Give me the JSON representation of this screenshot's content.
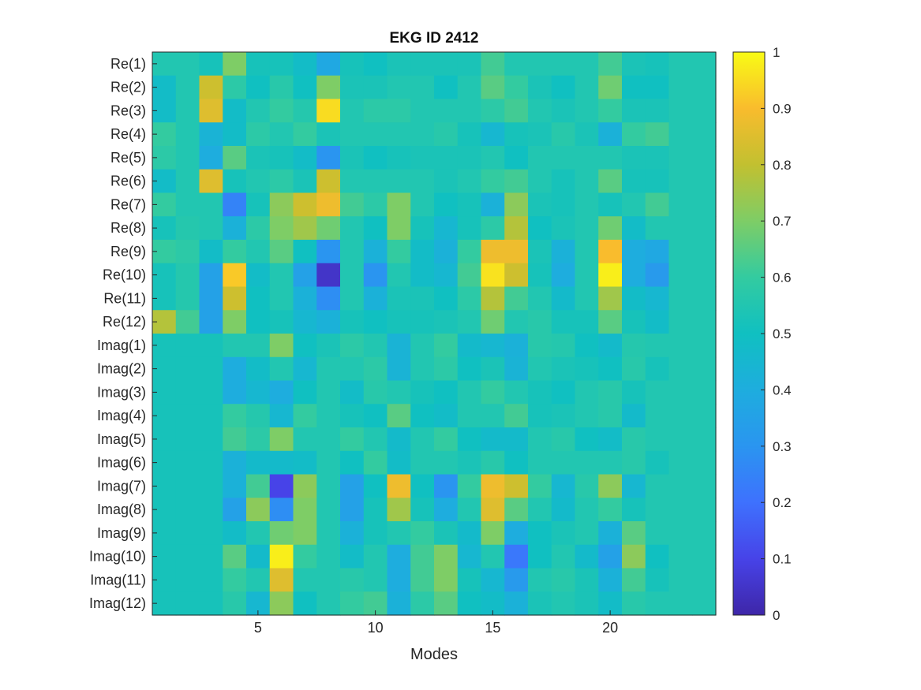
{
  "chart_data": {
    "type": "heatmap",
    "title": "EKG ID 2412",
    "xlabel": "Modes",
    "ylabel": "",
    "x_range": [
      1,
      24
    ],
    "x_ticks": [
      5,
      10,
      15,
      20
    ],
    "y_labels": [
      "Re(1)",
      "Re(2)",
      "Re(3)",
      "Re(4)",
      "Re(5)",
      "Re(6)",
      "Re(7)",
      "Re(8)",
      "Re(9)",
      "Re(10)",
      "Re(11)",
      "Re(12)",
      "Imag(1)",
      "Imag(2)",
      "Imag(3)",
      "Imag(4)",
      "Imag(5)",
      "Imag(6)",
      "Imag(7)",
      "Imag(8)",
      "Imag(9)",
      "Imag(10)",
      "Imag(11)",
      "Imag(12)"
    ],
    "colorbar": {
      "range": [
        0,
        1
      ],
      "ticks": [
        0,
        0.1,
        0.2,
        0.3,
        0.4,
        0.5,
        0.6,
        0.7,
        0.8,
        0.9,
        1
      ],
      "colormap": "parula"
    },
    "values": [
      [
        0.55,
        0.55,
        0.52,
        0.7,
        0.52,
        0.52,
        0.48,
        0.38,
        0.52,
        0.5,
        0.53,
        0.53,
        0.53,
        0.53,
        0.62,
        0.55,
        0.55,
        0.55,
        0.55,
        0.62,
        0.53,
        0.52,
        0.55,
        0.55
      ],
      [
        0.48,
        0.55,
        0.82,
        0.58,
        0.5,
        0.57,
        0.5,
        0.7,
        0.53,
        0.53,
        0.55,
        0.55,
        0.5,
        0.55,
        0.65,
        0.6,
        0.53,
        0.5,
        0.55,
        0.68,
        0.5,
        0.5,
        0.55,
        0.55
      ],
      [
        0.48,
        0.55,
        0.85,
        0.48,
        0.55,
        0.6,
        0.56,
        0.95,
        0.55,
        0.58,
        0.58,
        0.55,
        0.55,
        0.55,
        0.58,
        0.62,
        0.55,
        0.53,
        0.55,
        0.6,
        0.53,
        0.53,
        0.55,
        0.55
      ],
      [
        0.6,
        0.55,
        0.43,
        0.48,
        0.58,
        0.55,
        0.6,
        0.53,
        0.55,
        0.55,
        0.55,
        0.55,
        0.57,
        0.52,
        0.45,
        0.52,
        0.53,
        0.57,
        0.53,
        0.42,
        0.6,
        0.62,
        0.55,
        0.55
      ],
      [
        0.58,
        0.55,
        0.4,
        0.65,
        0.53,
        0.52,
        0.48,
        0.3,
        0.53,
        0.5,
        0.52,
        0.53,
        0.53,
        0.53,
        0.55,
        0.5,
        0.55,
        0.55,
        0.55,
        0.55,
        0.53,
        0.53,
        0.55,
        0.55
      ],
      [
        0.48,
        0.55,
        0.85,
        0.52,
        0.55,
        0.58,
        0.53,
        0.82,
        0.55,
        0.55,
        0.55,
        0.55,
        0.53,
        0.55,
        0.6,
        0.62,
        0.55,
        0.52,
        0.55,
        0.65,
        0.52,
        0.52,
        0.55,
        0.55
      ],
      [
        0.6,
        0.55,
        0.55,
        0.25,
        0.52,
        0.72,
        0.82,
        0.88,
        0.62,
        0.58,
        0.7,
        0.55,
        0.5,
        0.52,
        0.42,
        0.72,
        0.53,
        0.52,
        0.55,
        0.52,
        0.55,
        0.62,
        0.55,
        0.55
      ],
      [
        0.52,
        0.56,
        0.55,
        0.42,
        0.58,
        0.7,
        0.75,
        0.68,
        0.55,
        0.5,
        0.7,
        0.52,
        0.45,
        0.52,
        0.58,
        0.78,
        0.5,
        0.53,
        0.55,
        0.68,
        0.48,
        0.55,
        0.55,
        0.55
      ],
      [
        0.6,
        0.58,
        0.48,
        0.6,
        0.55,
        0.65,
        0.5,
        0.3,
        0.55,
        0.42,
        0.6,
        0.48,
        0.42,
        0.6,
        0.88,
        0.88,
        0.53,
        0.42,
        0.55,
        0.9,
        0.4,
        0.38,
        0.55,
        0.55
      ],
      [
        0.52,
        0.56,
        0.35,
        0.92,
        0.48,
        0.55,
        0.35,
        0.05,
        0.55,
        0.3,
        0.55,
        0.48,
        0.45,
        0.62,
        0.96,
        0.82,
        0.52,
        0.4,
        0.55,
        0.98,
        0.4,
        0.32,
        0.55,
        0.55
      ],
      [
        0.52,
        0.56,
        0.35,
        0.82,
        0.5,
        0.55,
        0.42,
        0.28,
        0.55,
        0.42,
        0.53,
        0.53,
        0.5,
        0.58,
        0.78,
        0.62,
        0.55,
        0.47,
        0.55,
        0.75,
        0.48,
        0.45,
        0.55,
        0.55
      ],
      [
        0.78,
        0.62,
        0.35,
        0.7,
        0.5,
        0.52,
        0.45,
        0.42,
        0.52,
        0.5,
        0.52,
        0.52,
        0.53,
        0.55,
        0.68,
        0.55,
        0.57,
        0.52,
        0.52,
        0.65,
        0.52,
        0.48,
        0.55,
        0.55
      ],
      [
        0.52,
        0.52,
        0.52,
        0.55,
        0.55,
        0.7,
        0.5,
        0.53,
        0.58,
        0.55,
        0.43,
        0.55,
        0.6,
        0.47,
        0.45,
        0.42,
        0.57,
        0.56,
        0.5,
        0.47,
        0.56,
        0.55,
        0.55,
        0.55
      ],
      [
        0.52,
        0.52,
        0.52,
        0.4,
        0.48,
        0.55,
        0.45,
        0.55,
        0.55,
        0.58,
        0.43,
        0.55,
        0.58,
        0.5,
        0.53,
        0.43,
        0.55,
        0.53,
        0.52,
        0.5,
        0.57,
        0.52,
        0.55,
        0.55
      ],
      [
        0.52,
        0.52,
        0.52,
        0.4,
        0.45,
        0.4,
        0.5,
        0.55,
        0.48,
        0.57,
        0.55,
        0.52,
        0.5,
        0.55,
        0.6,
        0.55,
        0.52,
        0.5,
        0.55,
        0.57,
        0.52,
        0.55,
        0.55,
        0.55
      ],
      [
        0.52,
        0.52,
        0.52,
        0.6,
        0.56,
        0.45,
        0.6,
        0.55,
        0.52,
        0.5,
        0.65,
        0.5,
        0.48,
        0.55,
        0.55,
        0.62,
        0.52,
        0.53,
        0.55,
        0.57,
        0.47,
        0.55,
        0.55,
        0.55
      ],
      [
        0.52,
        0.52,
        0.52,
        0.62,
        0.58,
        0.7,
        0.55,
        0.55,
        0.6,
        0.55,
        0.47,
        0.55,
        0.6,
        0.5,
        0.47,
        0.47,
        0.55,
        0.57,
        0.5,
        0.48,
        0.57,
        0.55,
        0.55,
        0.55
      ],
      [
        0.52,
        0.52,
        0.52,
        0.42,
        0.47,
        0.47,
        0.48,
        0.55,
        0.5,
        0.6,
        0.48,
        0.55,
        0.55,
        0.53,
        0.57,
        0.5,
        0.55,
        0.55,
        0.55,
        0.55,
        0.57,
        0.52,
        0.55,
        0.55
      ],
      [
        0.52,
        0.52,
        0.52,
        0.42,
        0.62,
        0.1,
        0.72,
        0.55,
        0.35,
        0.5,
        0.88,
        0.5,
        0.3,
        0.6,
        0.88,
        0.82,
        0.6,
        0.45,
        0.57,
        0.72,
        0.45,
        0.55,
        0.55,
        0.55
      ],
      [
        0.52,
        0.52,
        0.52,
        0.35,
        0.72,
        0.28,
        0.7,
        0.55,
        0.35,
        0.52,
        0.75,
        0.52,
        0.4,
        0.55,
        0.85,
        0.65,
        0.55,
        0.47,
        0.55,
        0.6,
        0.52,
        0.55,
        0.55,
        0.55
      ],
      [
        0.52,
        0.52,
        0.52,
        0.48,
        0.55,
        0.68,
        0.7,
        0.55,
        0.42,
        0.52,
        0.55,
        0.6,
        0.53,
        0.47,
        0.7,
        0.4,
        0.5,
        0.53,
        0.55,
        0.42,
        0.65,
        0.55,
        0.55,
        0.55
      ],
      [
        0.52,
        0.52,
        0.52,
        0.65,
        0.47,
        0.98,
        0.6,
        0.55,
        0.48,
        0.55,
        0.4,
        0.62,
        0.7,
        0.45,
        0.55,
        0.22,
        0.5,
        0.55,
        0.47,
        0.35,
        0.72,
        0.5,
        0.55,
        0.55
      ],
      [
        0.52,
        0.52,
        0.52,
        0.6,
        0.55,
        0.85,
        0.55,
        0.55,
        0.57,
        0.55,
        0.4,
        0.62,
        0.7,
        0.52,
        0.45,
        0.32,
        0.55,
        0.57,
        0.53,
        0.42,
        0.62,
        0.52,
        0.55,
        0.55
      ],
      [
        0.52,
        0.52,
        0.52,
        0.57,
        0.45,
        0.72,
        0.5,
        0.55,
        0.6,
        0.62,
        0.42,
        0.58,
        0.65,
        0.5,
        0.48,
        0.42,
        0.53,
        0.55,
        0.53,
        0.48,
        0.57,
        0.55,
        0.55,
        0.55
      ]
    ]
  }
}
